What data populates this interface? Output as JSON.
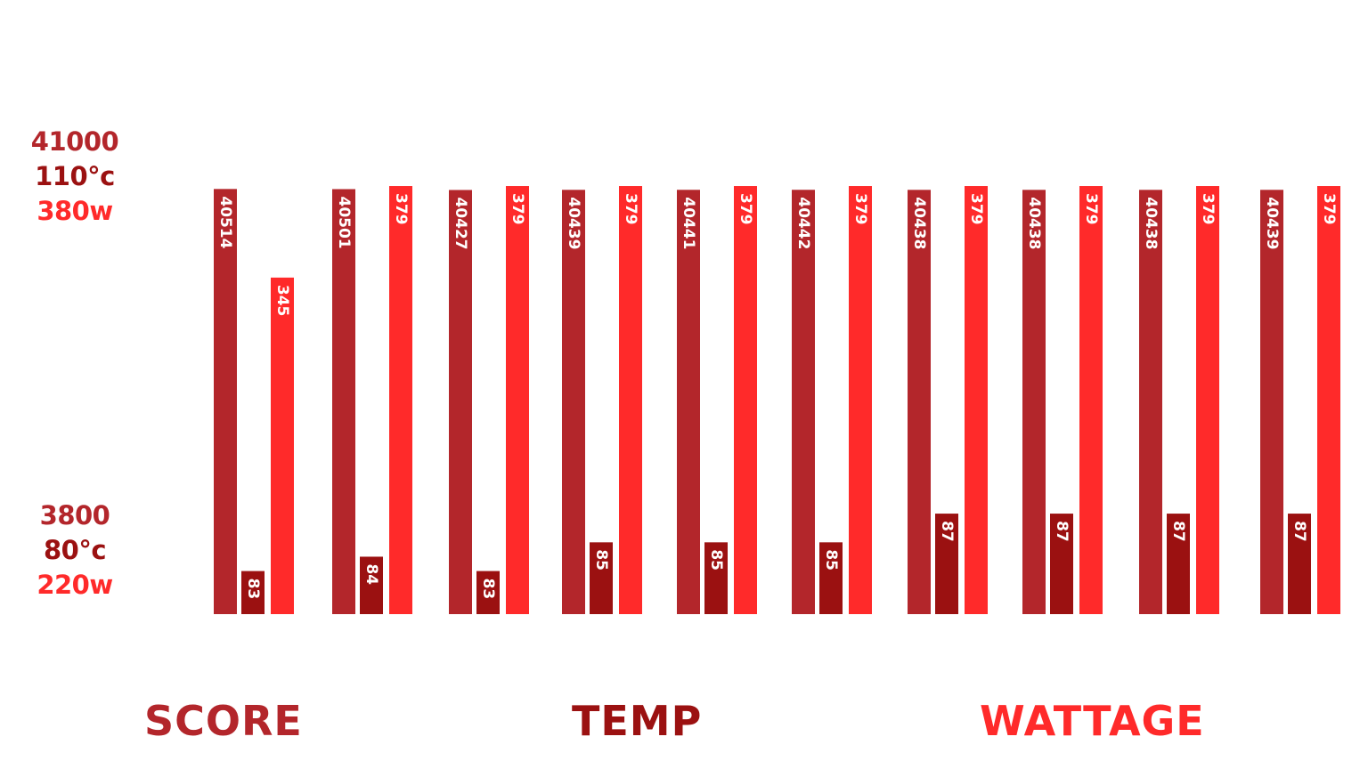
{
  "colors": {
    "score": "#b3262b",
    "temp": "#9b1111",
    "wattage": "#ff2a2a"
  },
  "axis_left": {
    "top": {
      "score": "41000",
      "temp": "110°c",
      "wattage": "380w"
    },
    "bottom": {
      "score": "3800",
      "temp": "80°c",
      "wattage": "220w"
    }
  },
  "legend": {
    "score": "SCORE",
    "temp": "TEMP",
    "wattage": "WATTAGE"
  },
  "chart_data": {
    "type": "bar",
    "title": "",
    "xlabel": "",
    "ylabel": "",
    "categories": [
      "",
      "",
      "",
      "",
      "",
      "",
      "",
      "",
      "",
      ""
    ],
    "scales": {
      "score": {
        "min": 3800,
        "max": 41000
      },
      "temp": {
        "min": 80,
        "max": 110
      },
      "wattage": {
        "min": 220,
        "max": 380
      }
    },
    "series": [
      {
        "name": "SCORE",
        "key": "score",
        "values": [
          40514,
          40501,
          40427,
          40439,
          40441,
          40442,
          40438,
          40438,
          40438,
          40439
        ],
        "labels": [
          "40514",
          "40501",
          "40427",
          "40439",
          "40441",
          "40442",
          "40438",
          "40438",
          "40438",
          "40439"
        ]
      },
      {
        "name": "TEMP",
        "key": "temp",
        "values": [
          83,
          84,
          83,
          85,
          85,
          85,
          87,
          87,
          87,
          87
        ],
        "labels": [
          "83",
          "84",
          "83",
          "85",
          "85",
          "85",
          "87",
          "87",
          "87",
          "87"
        ]
      },
      {
        "name": "WATTAGE",
        "key": "wattage",
        "values": [
          345,
          379,
          379,
          379,
          379,
          379,
          379,
          379,
          379,
          379
        ],
        "labels": [
          "345",
          "379",
          "379",
          "379",
          "379",
          "379",
          "379",
          "379",
          "379",
          "379"
        ]
      }
    ]
  }
}
